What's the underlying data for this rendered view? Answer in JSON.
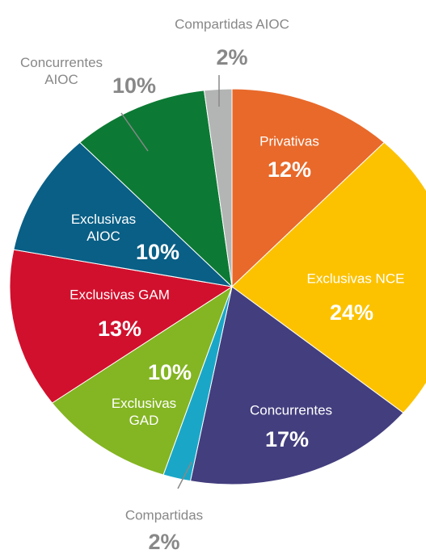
{
  "chart_data": {
    "type": "pie",
    "categories": [
      "Privativas",
      "Exclusivas NCE",
      "Concurrentes",
      "Compartidas",
      "Exclusivas GAD",
      "Exclusivas GAM",
      "Exclusivas AIOC",
      "Concurrentes AIOC",
      "Compartidas AIOC"
    ],
    "values": [
      12,
      24,
      17,
      2,
      10,
      13,
      10,
      10,
      2
    ],
    "value_labels": [
      "12%",
      "24%",
      "17%",
      "2%",
      "10%",
      "13%",
      "10%",
      "10%",
      "2%"
    ],
    "colors": [
      "#e8692a",
      "#fcc200",
      "#433e7e",
      "#1aa7c7",
      "#84b523",
      "#d1102d",
      "#095f86",
      "#0c7a34",
      "#b3b5b4"
    ]
  }
}
